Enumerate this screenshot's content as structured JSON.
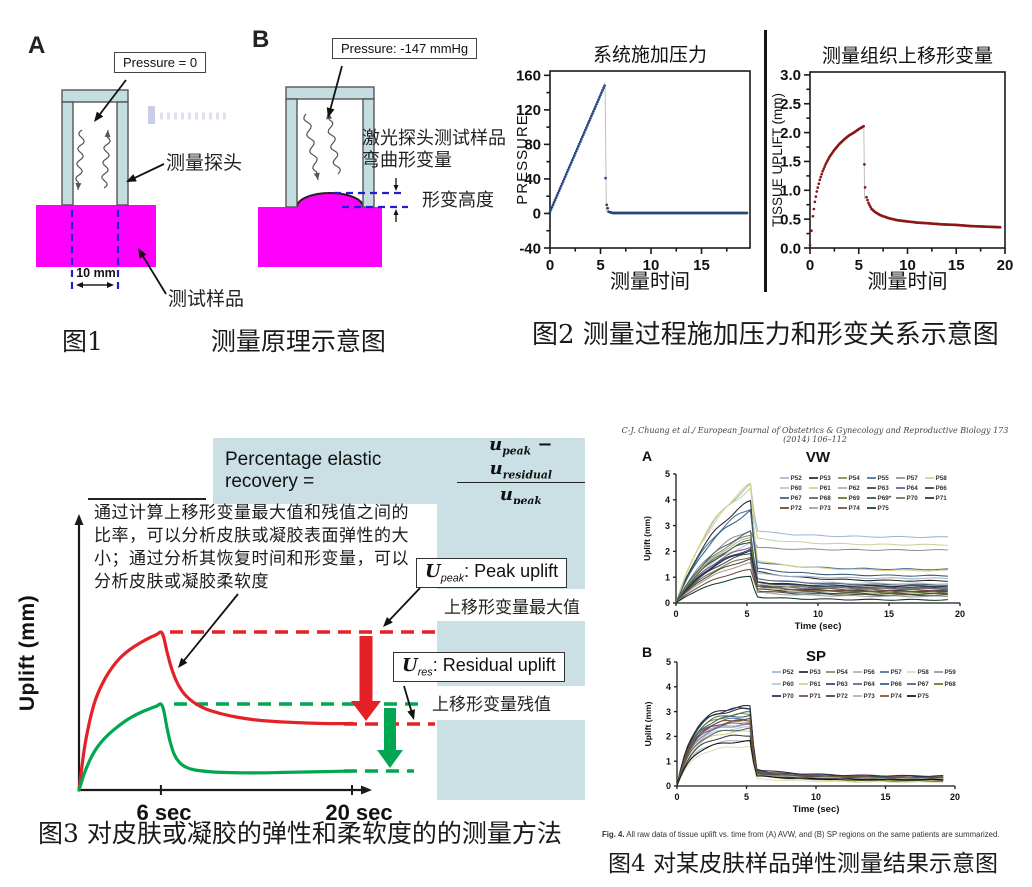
{
  "colors": {
    "tube": "#c3dde1",
    "sample": "#ff00fd",
    "dash": "#2121c9",
    "cyan": "#cbe0e4",
    "red": "#e32126",
    "green": "#00a650"
  },
  "figure1": {
    "panelA": {
      "letter": "A",
      "pressure": "Pressure = 0",
      "probe": "测量探头",
      "sample": "测试样品",
      "width": "10 mm"
    },
    "panelB": {
      "letter": "B",
      "pressure": "Pressure: -147 mmHg",
      "laser1": "激光探头测试样品",
      "laser2": "弯曲形变量",
      "height": "形变高度"
    },
    "caption_no": "图1",
    "caption": "测量原理示意图"
  },
  "figure2": {
    "caption": "图2 测量过程施加压力和形变关系示意图"
  },
  "figure3": {
    "formula": {
      "lhs": "Percentage elastic recovery =",
      "u1": "u",
      "sub1": "peak",
      "minus": "−",
      "u2": "u",
      "sub2": "residual",
      "u3": "u",
      "sub3": "peak"
    },
    "annotation": "通过计算上移形变量最大值和残值之间的比率，可以分析皮肤或凝胶表面弹性的大小；通过分析其恢复时间和形变量，可以分析皮肤或凝胶柔软度",
    "ylabel": "Uplift (mm)",
    "tick6": "6 sec",
    "tick20": "20 sec",
    "peak_box": {
      "u": "U",
      "sub": "peak",
      "rest": ": Peak uplift"
    },
    "peak_note": "上移形变量最大值",
    "res_box": {
      "u": "U",
      "sub": "res",
      "rest": ":  Residual uplift"
    },
    "res_note": "上移形变量残值",
    "caption": "图3 对皮肤或凝胶的弹性和柔软度的的测量方法"
  },
  "figure4": {
    "header": "C-J. Chuang et al./ European Journal of Obstetrics & Gynecology and Reproductive Biology 173 (2014) 106–112",
    "panelA_letter": "A",
    "panelB_letter": "B",
    "caption_en_bold": "Fig. 4.",
    "caption_en": " All raw data of tissue uplift vs. time from (A) AVW, and (B) SP regions on the same patients are summarized.",
    "caption_cn": "图4 对某皮肤样品弹性测量结果示意图"
  },
  "chart_data": [
    {
      "id": "pressure",
      "type": "scatter",
      "title": "系统施加压力",
      "xlabel": "测量时间",
      "ylabel": "PRESSURE",
      "xlim": [
        0,
        19.8
      ],
      "ylim": [
        -40,
        165
      ],
      "xticks": [
        [
          0,
          "0"
        ],
        [
          5,
          "5"
        ],
        [
          10,
          "10"
        ],
        [
          15,
          "15"
        ]
      ],
      "yticks": [
        [
          -40,
          "-40"
        ],
        [
          0,
          "0"
        ],
        [
          40,
          "40"
        ],
        [
          80,
          "80"
        ],
        [
          120,
          "120"
        ],
        [
          160,
          "160"
        ]
      ],
      "minor_ticks": true,
      "frame": true,
      "color": "#27457f",
      "dot_r": 1.35,
      "dt": 0.1,
      "keypoints": [
        [
          0,
          2
        ],
        [
          5.4,
          148
        ],
        [
          5.5,
          41
        ],
        [
          5.62,
          10
        ],
        [
          5.8,
          2
        ],
        [
          6.2,
          0.5
        ],
        [
          19.5,
          0.5
        ]
      ],
      "drop_line": [
        5.45,
        152,
        5.58,
        2
      ]
    },
    {
      "id": "tissue",
      "type": "scatter",
      "title": "测量组织上移形变量",
      "xlabel": "测量时间",
      "ylabel": "TISSUE UPLIFT (mm)",
      "xlim": [
        0,
        20
      ],
      "ylim": [
        0,
        3.05
      ],
      "xticks": [
        [
          0,
          "0"
        ],
        [
          5,
          "5"
        ],
        [
          10,
          "10"
        ],
        [
          15,
          "15"
        ],
        [
          20,
          "20"
        ]
      ],
      "yticks": [
        [
          0,
          "0.0"
        ],
        [
          0.5,
          "0.5"
        ],
        [
          1,
          "1.0"
        ],
        [
          1.5,
          "1.5"
        ],
        [
          2,
          "2.0"
        ],
        [
          2.5,
          "2.5"
        ],
        [
          3,
          "3.0"
        ]
      ],
      "minor_ticks": true,
      "frame": true,
      "color": "#8c1717",
      "dot_r": 1.35,
      "dt": 0.1,
      "keypoints": [
        [
          0,
          0.05
        ],
        [
          0.15,
          0.3
        ],
        [
          0.3,
          0.55
        ],
        [
          0.5,
          0.8
        ],
        [
          0.7,
          0.98
        ],
        [
          1,
          1.18
        ],
        [
          1.3,
          1.33
        ],
        [
          1.6,
          1.45
        ],
        [
          2,
          1.58
        ],
        [
          2.5,
          1.7
        ],
        [
          3,
          1.8
        ],
        [
          3.5,
          1.88
        ],
        [
          4,
          1.95
        ],
        [
          4.5,
          2.0
        ],
        [
          5,
          2.06
        ],
        [
          5.3,
          2.09
        ],
        [
          5.5,
          2.11
        ],
        [
          5.58,
          1.45
        ],
        [
          5.65,
          1.05
        ],
        [
          5.8,
          0.88
        ],
        [
          6,
          0.78
        ],
        [
          6.3,
          0.68
        ],
        [
          6.7,
          0.62
        ],
        [
          7.2,
          0.57
        ],
        [
          8,
          0.52
        ],
        [
          9,
          0.48
        ],
        [
          10,
          0.46
        ],
        [
          11,
          0.44
        ],
        [
          12,
          0.43
        ],
        [
          13.5,
          0.41
        ],
        [
          15,
          0.4
        ],
        [
          16.5,
          0.38
        ],
        [
          18,
          0.37
        ],
        [
          19.5,
          0.36
        ]
      ],
      "drop_line": [
        5.52,
        2.08,
        5.6,
        0.85
      ]
    },
    {
      "id": "method",
      "type": "line",
      "ylabel": "Uplift (mm)",
      "xtick_labels": [
        "6 sec",
        "20 sec"
      ],
      "xticks_sec": [
        6,
        20
      ],
      "series": [
        {
          "name": "skin-red",
          "color": "#e32126",
          "peak": 0.79,
          "residual": 0.33,
          "points": [
            [
              0,
              0
            ],
            [
              0.4,
              0.21
            ],
            [
              0.8,
              0.35
            ],
            [
              1.2,
              0.45
            ],
            [
              1.7,
              0.53
            ],
            [
              2.2,
              0.59
            ],
            [
              2.8,
              0.645
            ],
            [
              3.4,
              0.685
            ],
            [
              4,
              0.715
            ],
            [
              4.6,
              0.74
            ],
            [
              5.2,
              0.762
            ],
            [
              5.7,
              0.778
            ],
            [
              6,
              0.79
            ],
            [
              6.2,
              0.765
            ],
            [
              6.45,
              0.69
            ],
            [
              6.75,
              0.615
            ],
            [
              7.1,
              0.55
            ],
            [
              7.5,
              0.5
            ],
            [
              8,
              0.46
            ],
            [
              8.7,
              0.425
            ],
            [
              9.5,
              0.4
            ],
            [
              10.5,
              0.38
            ],
            [
              11.5,
              0.365
            ],
            [
              13,
              0.35
            ],
            [
              14.5,
              0.342
            ],
            [
              16,
              0.337
            ],
            [
              17.5,
              0.333
            ],
            [
              19,
              0.332
            ],
            [
              20,
              0.333
            ]
          ]
        },
        {
          "name": "gel-green",
          "color": "#00a650",
          "peak": 0.43,
          "residual": 0.095,
          "points": [
            [
              0,
              0
            ],
            [
              0.4,
              0.085
            ],
            [
              0.8,
              0.15
            ],
            [
              1.2,
              0.2
            ],
            [
              1.7,
              0.245
            ],
            [
              2.2,
              0.28
            ],
            [
              2.8,
              0.315
            ],
            [
              3.4,
              0.345
            ],
            [
              4,
              0.37
            ],
            [
              4.6,
              0.39
            ],
            [
              5.2,
              0.407
            ],
            [
              5.7,
              0.42
            ],
            [
              6,
              0.43
            ],
            [
              6.2,
              0.4
            ],
            [
              6.45,
              0.31
            ],
            [
              6.7,
              0.235
            ],
            [
              7,
              0.175
            ],
            [
              7.4,
              0.135
            ],
            [
              7.9,
              0.112
            ],
            [
              8.5,
              0.1
            ],
            [
              9.5,
              0.092
            ],
            [
              10.5,
              0.088
            ],
            [
              12,
              0.086
            ],
            [
              13.5,
              0.086
            ],
            [
              15,
              0.088
            ],
            [
              16.5,
              0.09
            ],
            [
              18,
              0.092
            ],
            [
              19.5,
              0.094
            ],
            [
              20,
              0.095
            ]
          ]
        }
      ]
    },
    {
      "id": "vw",
      "type": "line",
      "title": "VW",
      "xlabel": "Time (sec)",
      "ylabel": "Uplift (mm)",
      "xlim": [
        0,
        20
      ],
      "ylim": [
        0,
        5
      ],
      "xticks": [
        [
          0,
          "0"
        ],
        [
          5,
          "5"
        ],
        [
          10,
          "10"
        ],
        [
          15,
          "15"
        ],
        [
          20,
          "20"
        ]
      ],
      "yticks": [
        [
          0,
          "0"
        ],
        [
          1,
          "1"
        ],
        [
          2,
          "2"
        ],
        [
          3,
          "3"
        ],
        [
          4,
          "4"
        ],
        [
          5,
          "5"
        ]
      ],
      "rise_k": 0.3,
      "drop_frac": 0.12,
      "peak_t": 5.3,
      "series": [
        {
          "name": "P52",
          "color": "#9db6d8",
          "peak": 4.55,
          "res": 2.55
        },
        {
          "name": "P53",
          "color": "#262626",
          "peak": 3.95,
          "res": 0.85
        },
        {
          "name": "P54",
          "color": "#7e8c54",
          "peak": 2.65,
          "res": 0.55
        },
        {
          "name": "P55",
          "color": "#4a6d9c",
          "peak": 3.7,
          "res": 1.3
        },
        {
          "name": "P57",
          "color": "#8f8f8f",
          "peak": 2.85,
          "res": 2.05
        },
        {
          "name": "P58",
          "color": "#c9d3a0",
          "peak": 4.45,
          "res": 2.25
        },
        {
          "name": "P60",
          "color": "#b8c4d8",
          "peak": 2.3,
          "res": 0.75
        },
        {
          "name": "P61",
          "color": "#d9d07f",
          "peak": 4.6,
          "res": 1.25
        },
        {
          "name": "P62",
          "color": "#a3b1c4",
          "peak": 2.55,
          "res": 0.95
        },
        {
          "name": "P63",
          "color": "#31425e",
          "peak": 2.4,
          "res": 0.6
        },
        {
          "name": "P64",
          "color": "#6b5a8e",
          "peak": 2.2,
          "res": 0.5
        },
        {
          "name": "P66",
          "color": "#3e3e3e",
          "peak": 2.1,
          "res": 0.45
        },
        {
          "name": "P67",
          "color": "#355c7d",
          "peak": 3.55,
          "res": 1.05
        },
        {
          "name": "P68",
          "color": "#52616e",
          "peak": 2.75,
          "res": 0.7
        },
        {
          "name": "P69",
          "color": "#66701f",
          "peak": 2.45,
          "res": 0.4
        },
        {
          "name": "P69*",
          "color": "#2f4f4f",
          "peak": 1.95,
          "res": 0.35
        },
        {
          "name": "P70",
          "color": "#7a6a54",
          "peak": 1.8,
          "res": 0.55
        },
        {
          "name": "P71",
          "color": "#1f2d50",
          "peak": 2.05,
          "res": 0.65
        },
        {
          "name": "P72",
          "color": "#56442f",
          "peak": 1.7,
          "res": 0.3
        },
        {
          "name": "P73",
          "color": "#9c9c9c",
          "peak": 1.55,
          "res": 0.25
        },
        {
          "name": "P74",
          "color": "#6d4c41",
          "peak": 1.3,
          "res": 0.45
        },
        {
          "name": "P75",
          "color": "#0f3b2e",
          "peak": 1.05,
          "res": 0.12
        }
      ]
    },
    {
      "id": "sp",
      "type": "line",
      "title": "SP",
      "xlabel": "Time (sec)",
      "ylabel": "Uplift (mm)",
      "xlim": [
        0,
        20
      ],
      "ylim": [
        0,
        5
      ],
      "xticks": [
        [
          0,
          "0"
        ],
        [
          5,
          "5"
        ],
        [
          10,
          "10"
        ],
        [
          15,
          "15"
        ],
        [
          20,
          "20"
        ]
      ],
      "yticks": [
        [
          0,
          "0"
        ],
        [
          1,
          "1"
        ],
        [
          2,
          "2"
        ],
        [
          3,
          "3"
        ],
        [
          4,
          "4"
        ],
        [
          5,
          "5"
        ]
      ],
      "rise_k": 0.9,
      "drop_frac": 0.1,
      "peak_t": 5.3,
      "series": [
        {
          "name": "P52",
          "color": "#9db6d8",
          "peak": 2.45,
          "res": 0.35
        },
        {
          "name": "P53",
          "color": "#262626",
          "peak": 3.2,
          "res": 0.3
        },
        {
          "name": "P54",
          "color": "#7e8c54",
          "peak": 2.9,
          "res": 0.25
        },
        {
          "name": "P56",
          "color": "#b0b0b0",
          "peak": 2.6,
          "res": 0.35
        },
        {
          "name": "P57",
          "color": "#4a6d9c",
          "peak": 2.75,
          "res": 0.3
        },
        {
          "name": "P58",
          "color": "#d9e0b8",
          "peak": 1.6,
          "res": 0.15
        },
        {
          "name": "P59",
          "color": "#8f8f8f",
          "peak": 2.5,
          "res": 0.4
        },
        {
          "name": "P60",
          "color": "#b8c4d8",
          "peak": 2.35,
          "res": 0.3
        },
        {
          "name": "P61",
          "color": "#d9d07f",
          "peak": 2.2,
          "res": 0.2
        },
        {
          "name": "P63",
          "color": "#31425e",
          "peak": 3.15,
          "res": 0.35
        },
        {
          "name": "P64",
          "color": "#6b5a8e",
          "peak": 2.55,
          "res": 0.3
        },
        {
          "name": "P66",
          "color": "#355c7d",
          "peak": 2.85,
          "res": 0.25
        },
        {
          "name": "P67",
          "color": "#52616e",
          "peak": 2.3,
          "res": 0.35
        },
        {
          "name": "P68",
          "color": "#66701f",
          "peak": 2.95,
          "res": 0.2
        },
        {
          "name": "P70",
          "color": "#1f2d50",
          "peak": 3.1,
          "res": 0.4
        },
        {
          "name": "P71",
          "color": "#6d4c41",
          "peak": 2.65,
          "res": 0.3
        },
        {
          "name": "P72",
          "color": "#3e3e3e",
          "peak": 2.05,
          "res": 0.25
        },
        {
          "name": "P73",
          "color": "#a3b1c4",
          "peak": 1.85,
          "res": 0.3
        },
        {
          "name": "P74",
          "color": "#7a5230",
          "peak": 2.7,
          "res": 0.35
        },
        {
          "name": "P75",
          "color": "#101010",
          "peak": 1.8,
          "res": 0.25
        }
      ]
    }
  ]
}
